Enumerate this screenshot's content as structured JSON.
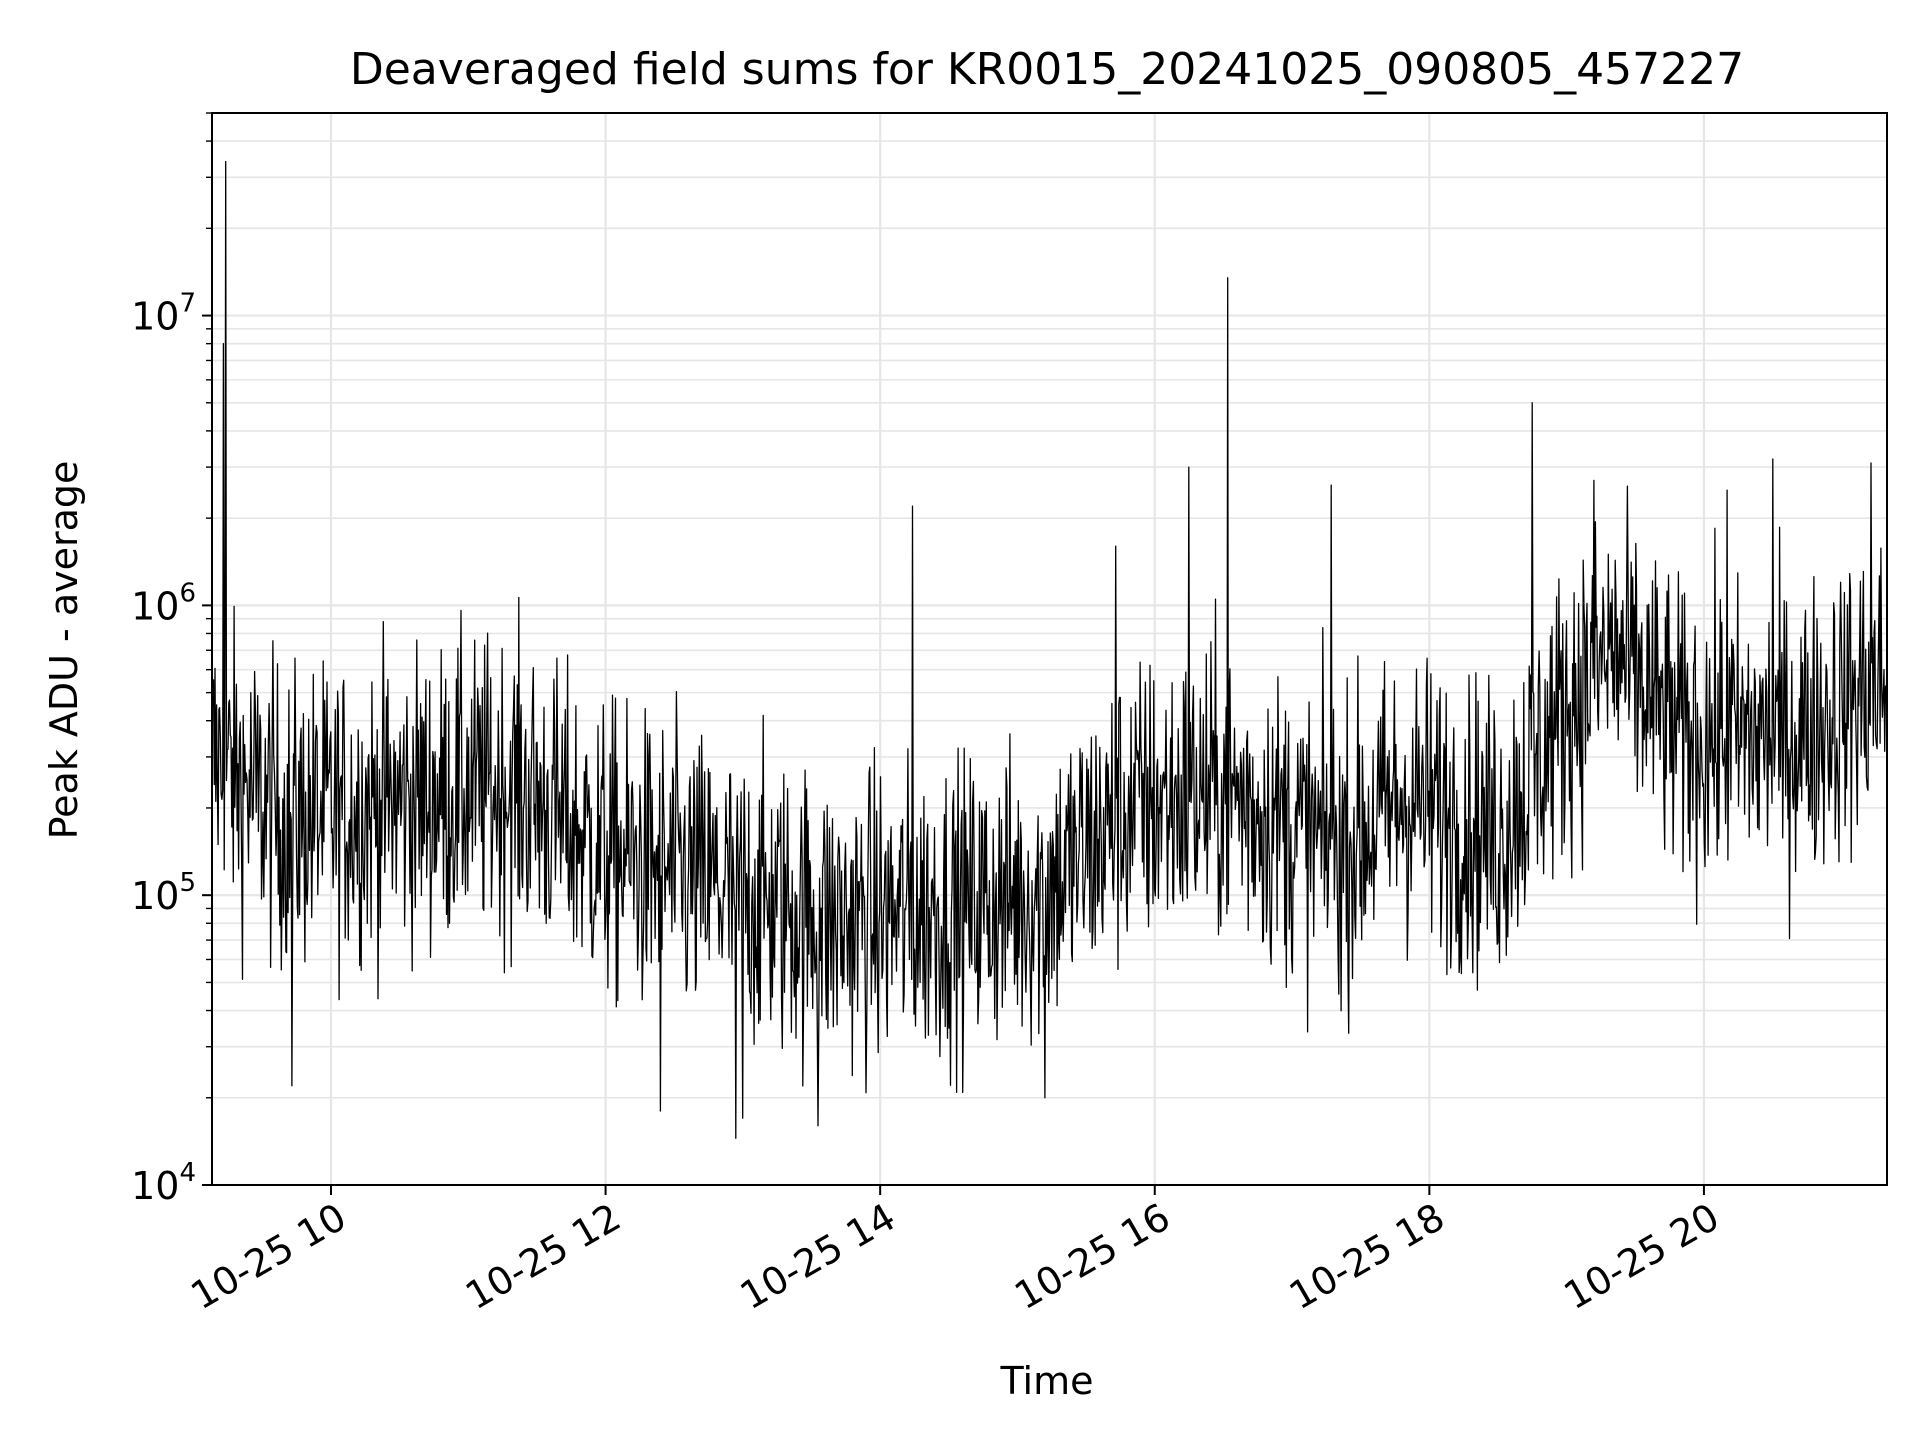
{
  "chart_data": {
    "type": "line",
    "title": "Deaveraged field sums for KR0015_20241025_090805_457227",
    "xlabel": "Time",
    "ylabel": "Peak ADU - average",
    "yscale": "log",
    "xlim": [
      "2024-10-25 09:08",
      "2024-10-25 21:20"
    ],
    "ylim": [
      10000,
      50000000
    ],
    "grid": true,
    "line_color": "#000000",
    "grid_color": "#e6e6e6",
    "x_ticks": [
      {
        "t": "2024-10-25 10:00",
        "label": "10-25 10"
      },
      {
        "t": "2024-10-25 12:00",
        "label": "10-25 12"
      },
      {
        "t": "2024-10-25 14:00",
        "label": "10-25 14"
      },
      {
        "t": "2024-10-25 16:00",
        "label": "10-25 16"
      },
      {
        "t": "2024-10-25 18:00",
        "label": "10-25 18"
      },
      {
        "t": "2024-10-25 20:00",
        "label": "10-25 20"
      }
    ],
    "y_ticks": [
      {
        "value": 10000,
        "base": "10",
        "exp": "4"
      },
      {
        "value": 100000,
        "base": "10",
        "exp": "5"
      },
      {
        "value": 1000000,
        "base": "10",
        "exp": "6"
      },
      {
        "value": 10000000,
        "base": "10",
        "exp": "7"
      }
    ],
    "series": [
      {
        "trend": [
          {
            "t": "2024-10-25 09:08",
            "value": 300000
          },
          {
            "t": "2024-10-25 09:40",
            "value": 180000
          },
          {
            "t": "2024-10-25 10:30",
            "value": 210000
          },
          {
            "t": "2024-10-25 11:20",
            "value": 240000
          },
          {
            "t": "2024-10-25 12:00",
            "value": 140000
          },
          {
            "t": "2024-10-25 13:00",
            "value": 100000
          },
          {
            "t": "2024-10-25 13:40",
            "value": 80000
          },
          {
            "t": "2024-10-25 14:30",
            "value": 90000
          },
          {
            "t": "2024-10-25 15:10",
            "value": 100000
          },
          {
            "t": "2024-10-25 15:50",
            "value": 200000
          },
          {
            "t": "2024-10-25 16:30",
            "value": 230000
          },
          {
            "t": "2024-10-25 17:20",
            "value": 140000
          },
          {
            "t": "2024-10-25 17:50",
            "value": 220000
          },
          {
            "t": "2024-10-25 18:30",
            "value": 160000
          },
          {
            "t": "2024-10-25 19:00",
            "value": 450000
          },
          {
            "t": "2024-10-25 19:20",
            "value": 700000
          },
          {
            "t": "2024-10-25 19:50",
            "value": 350000
          },
          {
            "t": "2024-10-25 20:40",
            "value": 350000
          },
          {
            "t": "2024-10-25 21:20",
            "value": 550000
          }
        ],
        "spikes": [
          {
            "t": "2024-10-25 09:14",
            "value": 34000000
          },
          {
            "t": "2024-10-25 09:13",
            "value": 8000000
          },
          {
            "t": "2024-10-25 15:43",
            "value": 1600000
          },
          {
            "t": "2024-10-25 16:15",
            "value": 3000000
          },
          {
            "t": "2024-10-25 16:32",
            "value": 13500000
          },
          {
            "t": "2024-10-25 17:17",
            "value": 2600000
          },
          {
            "t": "2024-10-25 14:14",
            "value": 2200000
          },
          {
            "t": "2024-10-25 18:45",
            "value": 5000000
          },
          {
            "t": "2024-10-25 19:12",
            "value": 2700000
          },
          {
            "t": "2024-10-25 20:30",
            "value": 3200000
          },
          {
            "t": "2024-10-25 21:13",
            "value": 3100000
          },
          {
            "t": "2024-10-25 20:10",
            "value": 2500000
          },
          {
            "t": "2024-10-25 09:43",
            "value": 22000
          },
          {
            "t": "2024-10-25 12:57",
            "value": 14500
          },
          {
            "t": "2024-10-25 13:33",
            "value": 16000
          },
          {
            "t": "2024-10-25 15:12",
            "value": 20000
          },
          {
            "t": "2024-10-25 13:00",
            "value": 17000
          },
          {
            "t": "2024-10-25 12:24",
            "value": 18000
          }
        ]
      }
    ]
  }
}
